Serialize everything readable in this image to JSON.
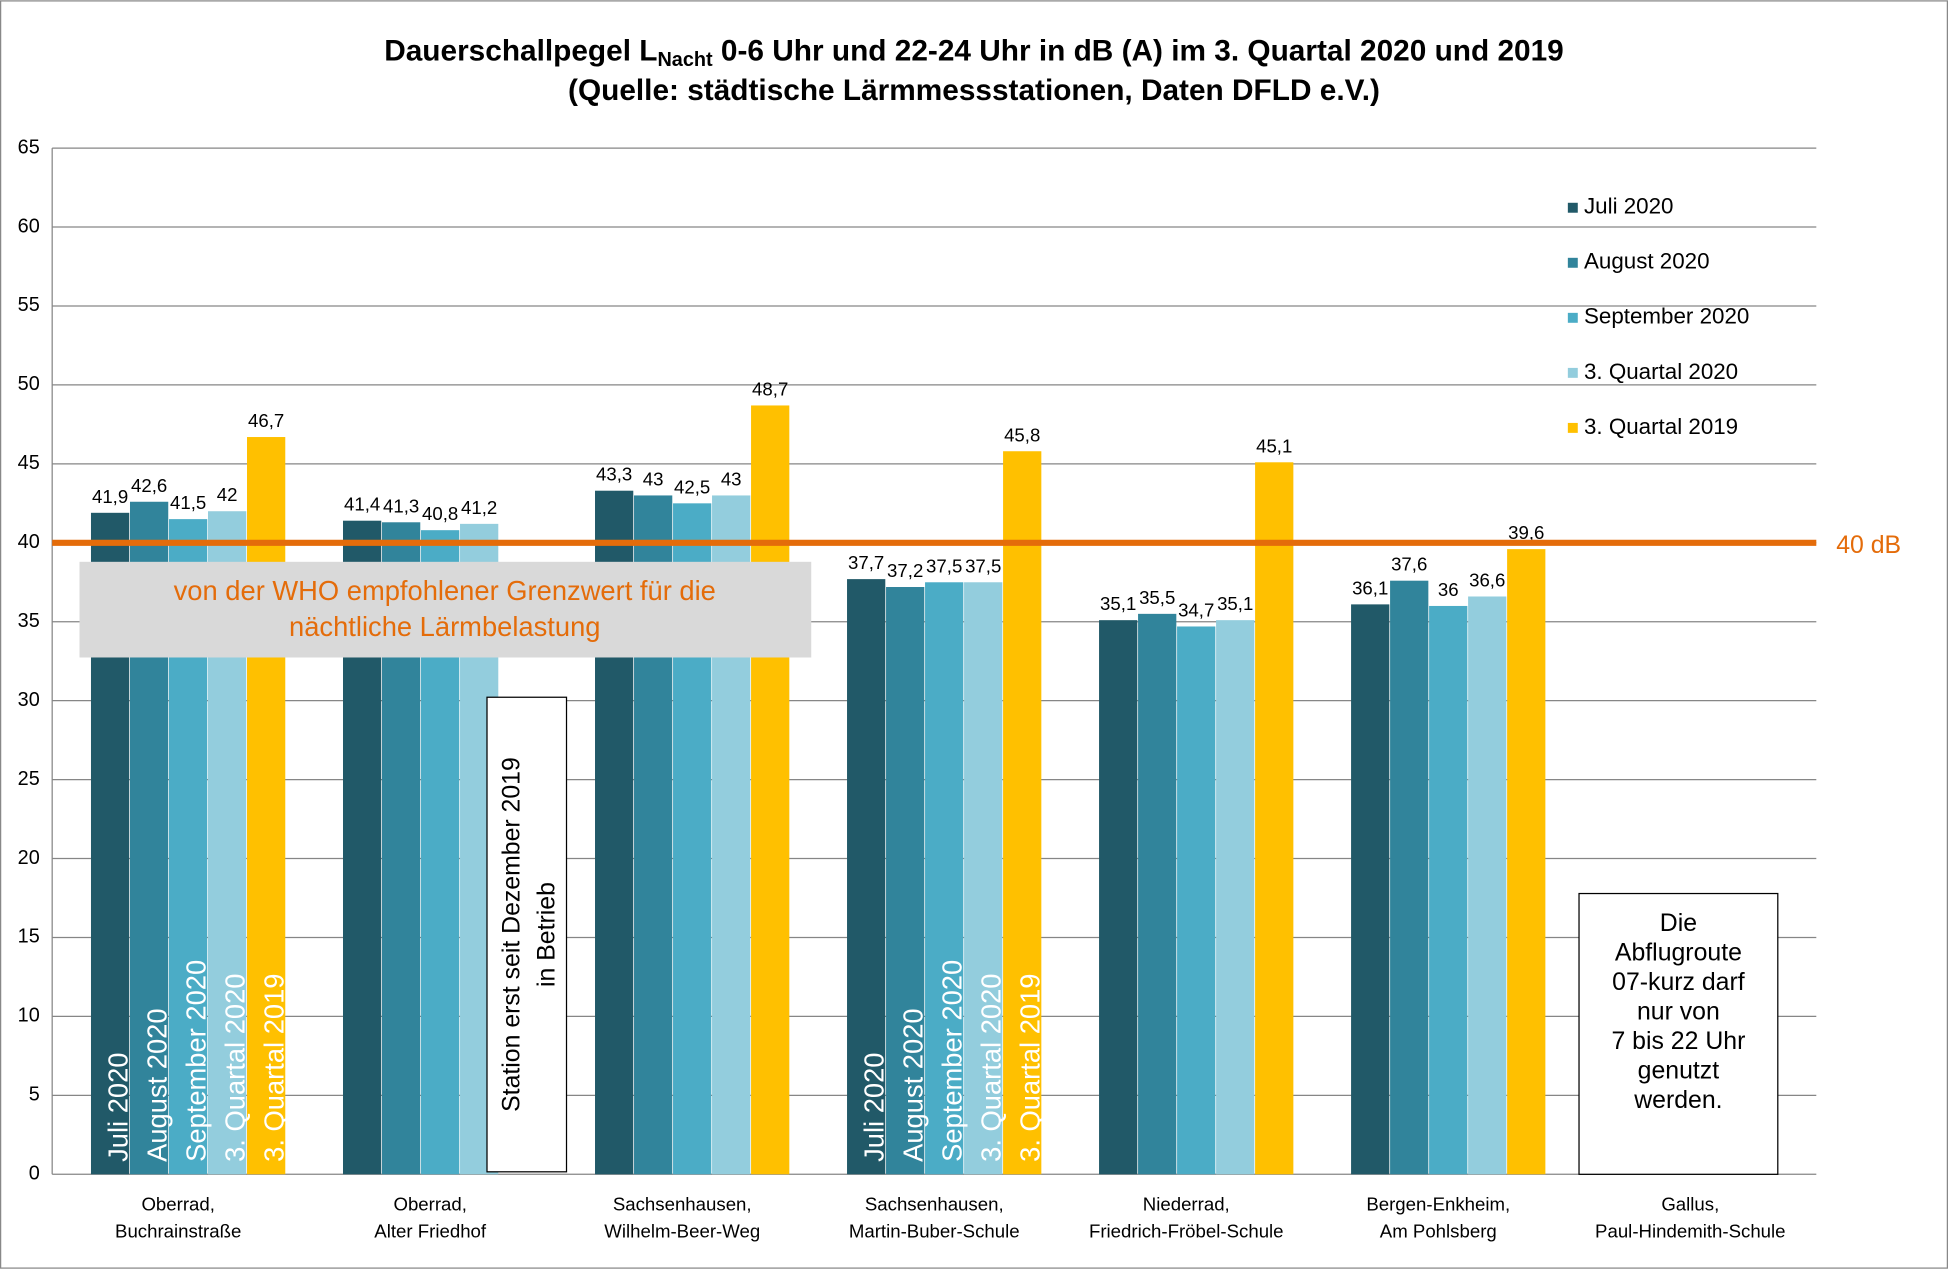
{
  "chart_data": {
    "type": "bar",
    "title": [
      "Dauerschallpegel L",
      "Nacht",
      " 0-6 Uhr und 22-24 Uhr in dB (A) im 3. Quartal 2020 und 2019"
    ],
    "subtitle": "(Quelle: städtische Lärmmessstationen, Daten DFLD e.V.)",
    "categories": [
      [
        "Oberrad,",
        "Buchrainstraße"
      ],
      [
        "Oberrad,",
        "Alter Friedhof"
      ],
      [
        "Sachsenhausen,",
        "Wilhelm-Beer-Weg"
      ],
      [
        "Sachsenhausen,",
        "Martin-Buber-Schule"
      ],
      [
        "Niederrad,",
        "Friedrich-Fröbel-Schule"
      ],
      [
        "Bergen-Enkheim,",
        "Am Pohlsberg"
      ],
      [
        "Gallus,",
        "Paul-Hindemith-Schule"
      ]
    ],
    "series": [
      {
        "name": "Juli 2020",
        "color": "#215968",
        "values": [
          41.9,
          41.4,
          43.3,
          37.7,
          35.1,
          36.1,
          null
        ],
        "value_labels": [
          "41,9",
          "41,4",
          "43,3",
          "37,7",
          "35,1",
          "36,1",
          null
        ]
      },
      {
        "name": "August 2020",
        "color": "#31849b",
        "values": [
          42.6,
          41.3,
          43,
          37.2,
          35.5,
          37.6,
          null
        ],
        "value_labels": [
          "42,6",
          "41,3",
          "43",
          "37,2",
          "35,5",
          "37,6",
          null
        ]
      },
      {
        "name": "September 2020",
        "color": "#4bacc6",
        "values": [
          41.5,
          40.8,
          42.5,
          37.5,
          34.7,
          36,
          null
        ],
        "value_labels": [
          "41,5",
          "40,8",
          "42,5",
          "37,5",
          "34,7",
          "36",
          null
        ]
      },
      {
        "name": "3. Quartal 2020",
        "color": "#93cddd",
        "values": [
          42,
          41.2,
          43,
          37.5,
          35.1,
          36.6,
          null
        ],
        "value_labels": [
          "42",
          "41,2",
          "43",
          "37,5",
          "35,1",
          "36,6",
          null
        ]
      },
      {
        "name": "3. Quartal 2019",
        "color": "#ffc000",
        "values": [
          46.7,
          null,
          48.7,
          45.8,
          45.1,
          39.6,
          null
        ],
        "value_labels": [
          "46,7",
          null,
          "48,7",
          "45,8",
          "45,1",
          "39,6",
          null
        ]
      }
    ],
    "ylim": [
      0,
      65
    ],
    "yticks": [
      0,
      5,
      10,
      15,
      20,
      25,
      30,
      35,
      40,
      45,
      50,
      55,
      60,
      65
    ],
    "grid": true,
    "legend": "right",
    "reference_line": {
      "value": 40,
      "label": "40 dB",
      "color": "#e46c0a",
      "note": [
        "von der WHO empfohlener Grenzwert für die",
        "nächtliche Lärmbelastung"
      ]
    },
    "annotations": [
      {
        "category": 1,
        "lines": [
          "Station erst seit Dezember 2019",
          "in Betrieb"
        ]
      },
      {
        "category": 6,
        "lines": [
          "Die",
          "Abflugroute",
          "07-kurz darf",
          "nur von",
          "7 bis 22 Uhr",
          "genutzt",
          "werden."
        ]
      }
    ]
  }
}
